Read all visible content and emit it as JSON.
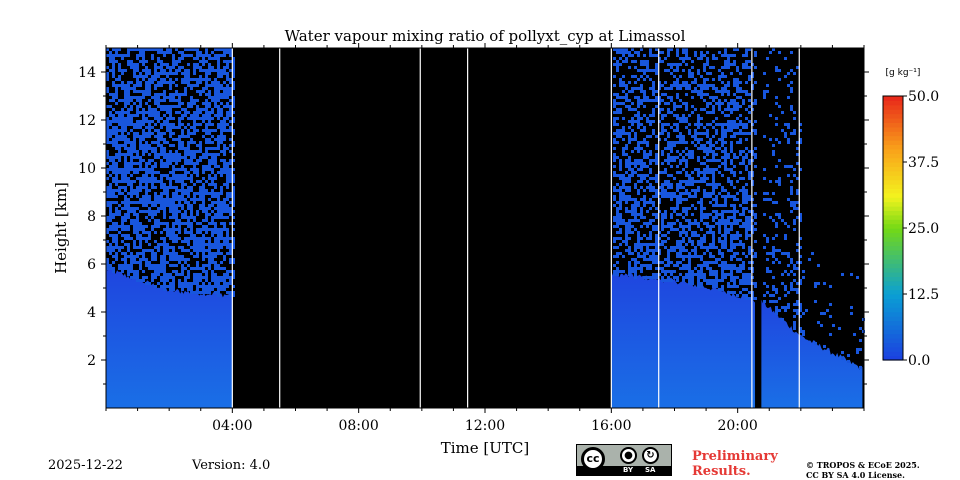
{
  "chart_data": {
    "type": "heatmap",
    "title": "Water vapour mixing ratio of pollyxt_cyp at Limassol",
    "xlabel": "Time [UTC]",
    "ylabel": "Height [km]",
    "xlim": [
      0,
      24
    ],
    "ylim": [
      0,
      15
    ],
    "x_ticks": [
      {
        "value": 4,
        "label": "04:00"
      },
      {
        "value": 8,
        "label": "08:00"
      },
      {
        "value": 12,
        "label": "12:00"
      },
      {
        "value": 16,
        "label": "16:00"
      },
      {
        "value": 20,
        "label": "20:00"
      }
    ],
    "y_ticks": [
      {
        "value": 2,
        "label": "2"
      },
      {
        "value": 4,
        "label": "4"
      },
      {
        "value": 6,
        "label": "6"
      },
      {
        "value": 8,
        "label": "8"
      },
      {
        "value": 10,
        "label": "10"
      },
      {
        "value": 12,
        "label": "12"
      },
      {
        "value": 14,
        "label": "14"
      }
    ],
    "colorbar": {
      "unit": "[g kg⁻¹]",
      "range": [
        0,
        50
      ],
      "ticks": [
        {
          "value": 0,
          "label": "0.0"
        },
        {
          "value": 12.5,
          "label": "12.5"
        },
        {
          "value": 25,
          "label": "25.0"
        },
        {
          "value": 37.5,
          "label": "37.5"
        },
        {
          "value": 50,
          "label": "50.0"
        }
      ]
    },
    "no_data_color": "#000000",
    "white_gap_times": [
      4.0,
      5.5,
      9.95,
      11.45,
      16.0,
      17.5,
      20.45,
      21.95
    ],
    "no_data_intervals": [
      [
        4.0,
        16.0
      ],
      [
        20.6,
        20.75
      ]
    ],
    "profile": [
      {
        "time": 0.0,
        "low_layer_top_km": 5.8
      },
      {
        "time": 2.0,
        "low_layer_top_km": 4.9
      },
      {
        "time": 3.99,
        "low_layer_top_km": 4.7
      },
      {
        "time": 16.01,
        "low_layer_top_km": 5.6
      },
      {
        "time": 18.0,
        "low_layer_top_km": 5.3
      },
      {
        "time": 19.5,
        "low_layer_top_km": 4.9
      },
      {
        "time": 20.0,
        "low_layer_top_km": 4.7
      },
      {
        "time": 20.8,
        "low_layer_top_km": 4.4
      },
      {
        "time": 22.0,
        "low_layer_top_km": 3.0
      },
      {
        "time": 23.0,
        "low_layer_top_km": 2.3
      },
      {
        "time": 24.0,
        "low_layer_top_km": 1.6
      }
    ],
    "low_layer_value": 4.5,
    "upper_layer_value": 3.0
  },
  "footer": {
    "date": "2025-12-22",
    "version": "Version: 4.0",
    "preliminary_line1": "Preliminary",
    "preliminary_line2": "Results.",
    "copyright_line1": "© TROPOS & ECoE 2025.",
    "copyright_line2": "CC BY SA 4.0 License.",
    "license_by": "BY",
    "license_sa": "SA"
  }
}
